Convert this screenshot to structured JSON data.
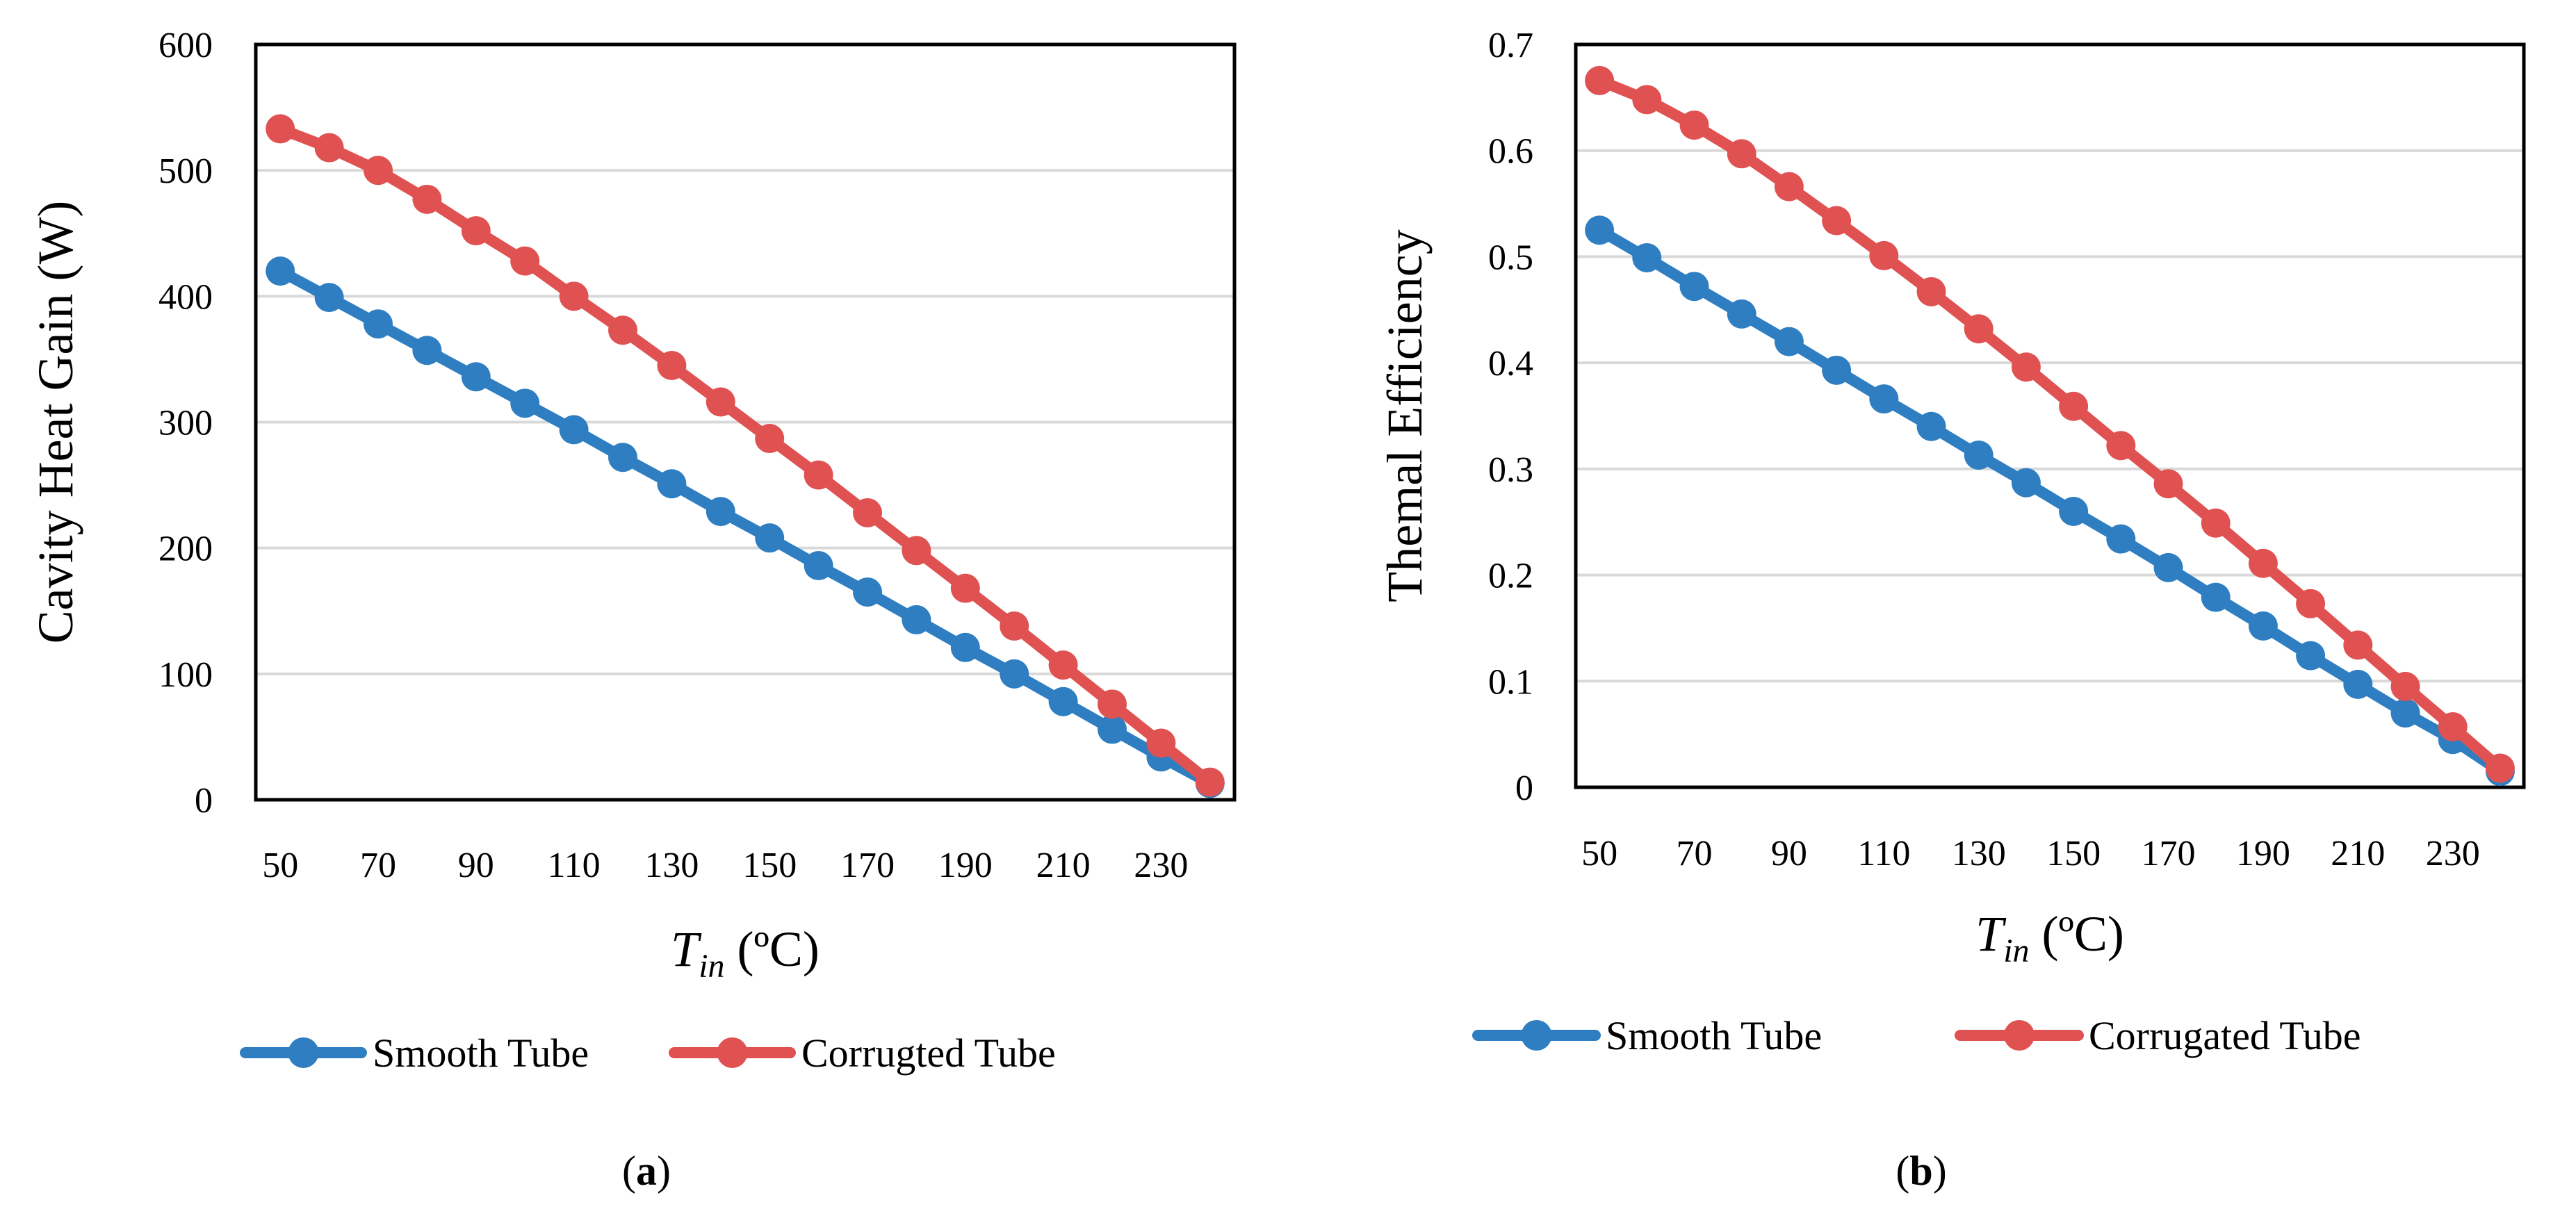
{
  "colors": {
    "smooth": "#2E7EC1",
    "corrugated": "#E05252",
    "grid": "#D9D9D9",
    "frame": "#000000"
  },
  "chart_data": [
    {
      "type": "line",
      "id": "a",
      "x": [
        50,
        60,
        70,
        80,
        90,
        100,
        110,
        120,
        130,
        140,
        150,
        160,
        170,
        180,
        190,
        200,
        210,
        220,
        230,
        240
      ],
      "x_tick_labels": [
        "50",
        "70",
        "90",
        "110",
        "130",
        "150",
        "170",
        "190",
        "210",
        "230"
      ],
      "xlabel": {
        "symbol": "T",
        "subscript": "in",
        "unit": " (ºC)"
      },
      "ylabel": "Cavity Heat Gain (W)",
      "ylim": [
        0,
        600
      ],
      "y_ticks": [
        0,
        100,
        200,
        300,
        400,
        500,
        600
      ],
      "y_tick_labels": [
        "0",
        "100",
        "200",
        "300",
        "400",
        "500",
        "600"
      ],
      "grid": true,
      "legend": "bottom",
      "series": [
        {
          "name": "Smooth Tube",
          "color_key": "smooth",
          "values": [
            420,
            399,
            378,
            357,
            336,
            315,
            294,
            272,
            251,
            229,
            208,
            186,
            165,
            143,
            121,
            100,
            78,
            56,
            34,
            13
          ]
        },
        {
          "name": "Corrugted Tube",
          "color_key": "corrugated",
          "values": [
            533,
            518,
            500,
            477,
            452,
            428,
            400,
            373,
            345,
            316,
            287,
            258,
            228,
            198,
            168,
            138,
            107,
            76,
            45,
            14
          ]
        }
      ],
      "caption_open": "(",
      "caption": "a",
      "caption_close": ")"
    },
    {
      "type": "line",
      "id": "b",
      "x": [
        50,
        60,
        70,
        80,
        90,
        100,
        110,
        120,
        130,
        140,
        150,
        160,
        170,
        180,
        190,
        200,
        210,
        220,
        230,
        240
      ],
      "x_tick_labels": [
        "50",
        "70",
        "90",
        "110",
        "130",
        "150",
        "170",
        "190",
        "210",
        "230"
      ],
      "xlabel": {
        "symbol": "T",
        "subscript": "in",
        "unit": " (ºC)"
      },
      "ylabel": "Themal Efficiency",
      "ylim": [
        0,
        0.7
      ],
      "y_ticks": [
        0,
        0.1,
        0.2,
        0.3,
        0.4,
        0.5,
        0.6,
        0.7
      ],
      "y_tick_labels": [
        "0",
        "0.1",
        "0.2",
        "0.3",
        "0.4",
        "0.5",
        "0.6",
        "0.7"
      ],
      "grid": true,
      "legend": "bottom",
      "series": [
        {
          "name": "Smooth Tube",
          "color_key": "smooth",
          "values": [
            0.525,
            0.499,
            0.472,
            0.446,
            0.42,
            0.393,
            0.366,
            0.34,
            0.313,
            0.287,
            0.26,
            0.234,
            0.207,
            0.179,
            0.152,
            0.124,
            0.097,
            0.07,
            0.045,
            0.015
          ]
        },
        {
          "name": "Corrugated Tube",
          "color_key": "corrugated",
          "values": [
            0.666,
            0.648,
            0.624,
            0.597,
            0.566,
            0.534,
            0.501,
            0.467,
            0.432,
            0.396,
            0.359,
            0.322,
            0.286,
            0.249,
            0.211,
            0.173,
            0.134,
            0.095,
            0.057,
            0.018
          ]
        }
      ],
      "caption_open": "(",
      "caption": "b",
      "caption_close": ")"
    }
  ]
}
